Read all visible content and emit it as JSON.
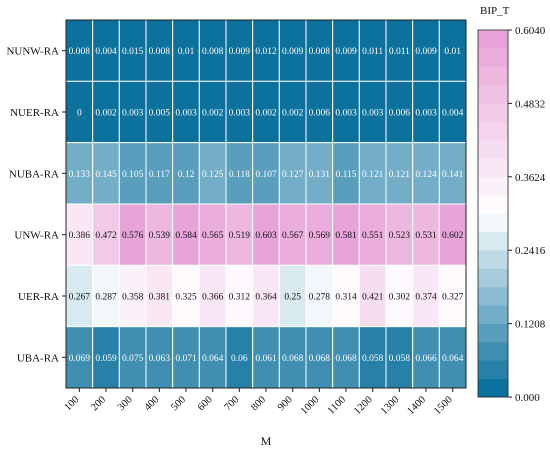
{
  "chart_data": {
    "type": "heatmap",
    "xlabel": "M",
    "ylabel": "",
    "x": [
      "100",
      "200",
      "300",
      "400",
      "500",
      "600",
      "700",
      "800",
      "900",
      "1000",
      "1100",
      "1200",
      "1300",
      "1400",
      "1500"
    ],
    "y": [
      "NUNW-RA",
      "NUER-RA",
      "NUBA-RA",
      "UNW-RA",
      "UER-RA",
      "UBA-RA"
    ],
    "values": [
      [
        "0.008",
        "0.004",
        "0.015",
        "0.008",
        "0.01",
        "0.008",
        "0.009",
        "0.012",
        "0.009",
        "0.008",
        "0.009",
        "0.011",
        "0.011",
        "0.009",
        "0.01"
      ],
      [
        "0",
        "0.002",
        "0.003",
        "0.005",
        "0.003",
        "0.002",
        "0.003",
        "0.002",
        "0.002",
        "0.006",
        "0.003",
        "0.003",
        "0.006",
        "0.003",
        "0.004"
      ],
      [
        "0.133",
        "0.145",
        "0.105",
        "0.117",
        "0.12",
        "0.125",
        "0.118",
        "0.107",
        "0.127",
        "0.131",
        "0.115",
        "0.121",
        "0.121",
        "0.124",
        "0.141"
      ],
      [
        "0.386",
        "0.472",
        "0.576",
        "0.539",
        "0.584",
        "0.565",
        "0.519",
        "0.603",
        "0.567",
        "0.569",
        "0.581",
        "0.551",
        "0.523",
        "0.531",
        "0.602"
      ],
      [
        "0.267",
        "0.287",
        "0.358",
        "0.381",
        "0.325",
        "0.366",
        "0.312",
        "0.364",
        "0.25",
        "0.278",
        "0.314",
        "0.421",
        "0.302",
        "0.374",
        "0.327"
      ],
      [
        "0.069",
        "0.059",
        "0.075",
        "0.063",
        "0.071",
        "0.064",
        "0.06",
        "0.061",
        "0.068",
        "0.068",
        "0.068",
        "0.058",
        "0.058",
        "0.066",
        "0.064"
      ]
    ],
    "colorbar": {
      "title": "BIP_T",
      "range": [
        0,
        0.604
      ],
      "ticks": [
        "0.000",
        "0.1208",
        "0.2416",
        "0.3624",
        "0.4832",
        "0.6040"
      ]
    },
    "colormap": [
      "#006a99",
      "#ffffff",
      "#e79fd6"
    ]
  }
}
